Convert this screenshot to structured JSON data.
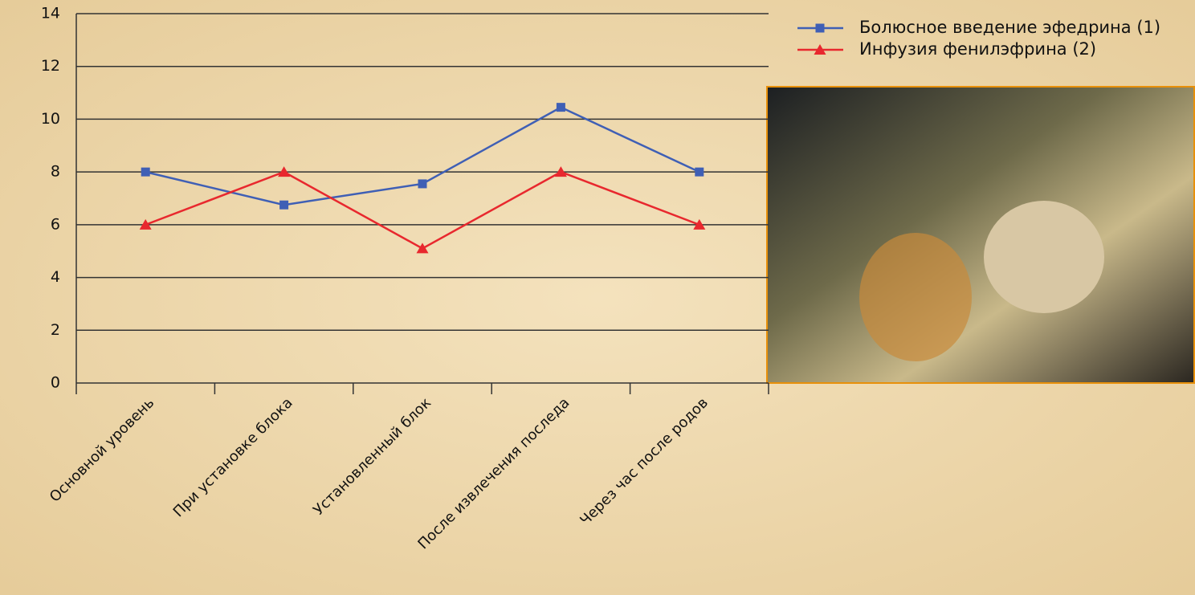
{
  "chart_data": {
    "type": "line",
    "categories": [
      "Основной уровень",
      "При установке блока",
      "Установленный блок",
      "После извлечения последа",
      "Через час после родов"
    ],
    "series": [
      {
        "name": "Болюсное введение эфедрина (1)",
        "color": "#3f5fb5",
        "marker": "square",
        "values": [
          8,
          6.75,
          7.55,
          10.45,
          8
        ]
      },
      {
        "name": "Инфузия фенилэфрина (2)",
        "color": "#e8282e",
        "marker": "triangle",
        "values": [
          6,
          8,
          5.1,
          8,
          6
        ]
      }
    ],
    "ylim": [
      0,
      14
    ],
    "yticks": [
      0,
      2,
      4,
      6,
      8,
      10,
      12,
      14
    ],
    "grid": true,
    "legend": "top-right"
  }
}
